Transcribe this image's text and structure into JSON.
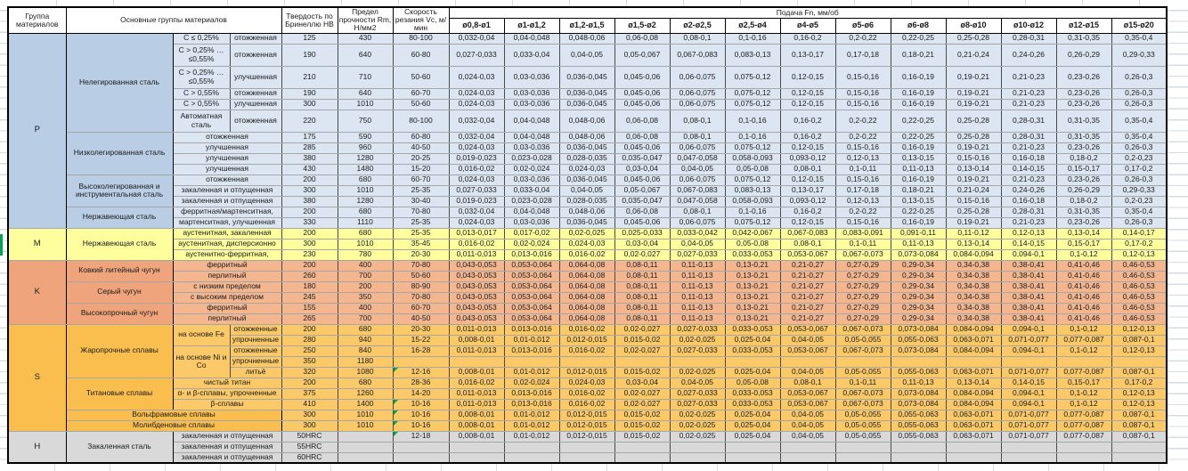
{
  "header": {
    "group": "Группа материалов",
    "main_groups": "Основные группы материалов",
    "hardness": "Твердость по Бринеллю HB",
    "strength": "Предел прочности Rm, Н/мм2",
    "speed": "Скорость резания Vc, м/мин",
    "feed": "Подача Fn, мм/об",
    "diameters": [
      "ø0,8-ø1",
      "ø1-ø1,2",
      "ø1,2-ø1,5",
      "ø1,5-ø2",
      "ø2-ø2,5",
      "ø2,5-ø4",
      "ø4-ø5",
      "ø5-ø6",
      "ø6-ø8",
      "ø8-ø10",
      "ø10-ø12",
      "ø12-ø15",
      "ø15-ø20"
    ]
  },
  "colors": {
    "p_label": "#B9CDE5",
    "p_cell": "#DBE6F2",
    "m_label": "#FEFF9C",
    "m_cell": "#FEFF9C",
    "k_label": "#F0A47C",
    "k_cell": "#F4B68F",
    "s_label": "#F9BE4E",
    "s_cell": "#FBC967",
    "h_label": "#D9D9D9",
    "h_cell": "#D9D9D9",
    "comment_marker": "#00A550",
    "gridline": "#D6DCE4"
  },
  "feed_profiles": {
    "A": [
      "0,032-0,04",
      "0,04-0,048",
      "0,048-0,06",
      "0,06-0,08",
      "0,08-0,1",
      "0,1-0,16",
      "0,16-0,2",
      "0,2-0,22",
      "0,22-0,25",
      "0,25-0,28",
      "0,28-0,31",
      "0,31-0,35",
      "0,35-0,4"
    ],
    "B": [
      "0,027-0,033",
      "0,033-0,04",
      "0,04-0,05",
      "0,05-0,067",
      "0,067-0,083",
      "0,083-0,13",
      "0,13-0,17",
      "0,17-0,18",
      "0,18-0,21",
      "0,21-0,24",
      "0,24-0,26",
      "0,26-0,29",
      "0,29-0,33"
    ],
    "C": [
      "0,024-0,03",
      "0,03-0,036",
      "0,036-0,045",
      "0,045-0,06",
      "0,06-0,075",
      "0,075-0,12",
      "0,12-0,15",
      "0,15-0,16",
      "0,16-0,19",
      "0,19-0,21",
      "0,21-0,23",
      "0,23-0,26",
      "0,26-0,3"
    ],
    "D": [
      "0,019-0,023",
      "0,023-0,028",
      "0,028-0,035",
      "0,035-0,047",
      "0,047-0,058",
      "0,058-0,093",
      "0,093-0,12",
      "0,12-0,13",
      "0,13-0,15",
      "0,15-0,16",
      "0,16-0,18",
      "0,18-0,2",
      "0,2-0,23"
    ],
    "E": [
      "0,016-0,02",
      "0,02-0,024",
      "0,024-0,03",
      "0,03-0,04",
      "0,04-0,05",
      "0,05-0,08",
      "0,08-0,1",
      "0,1-0,11",
      "0,11-0,13",
      "0,13-0,14",
      "0,14-0,15",
      "0,15-0,17",
      "0,17-0,2"
    ],
    "M": [
      "0,013-0,017",
      "0,017-0,02",
      "0,02-0,025",
      "0,025-0,033",
      "0,033-0,042",
      "0,042-0,067",
      "0,067-0,083",
      "0,083-0,091",
      "0,091-0,11",
      "0,11-0,12",
      "0,12-0,13",
      "0,13-0,14",
      "0,14-0,17"
    ],
    "F": [
      "0,011-0,013",
      "0,013-0,016",
      "0,016-0,02",
      "0,02-0,027",
      "0,027-0,033",
      "0,033-0,053",
      "0,053-0,067",
      "0,067-0,073",
      "0,073-0,084",
      "0,084-0,094",
      "0,094-0,1",
      "0,1-0,12",
      "0,12-0,13"
    ],
    "G": [
      "0,008-0,01",
      "0,01-0,012",
      "0,012-0,015",
      "0,015-0,02",
      "0,02-0,025",
      "0,025-0,04",
      "0,04-0,05",
      "0,05-0,055",
      "0,055-0,063",
      "0,063-0,071",
      "0,071-0,077",
      "0,077-0,087",
      "0,087-0,1"
    ],
    "K": [
      "0,043-0,053",
      "0,053-0,064",
      "0,064-0,08",
      "0,08-0,11",
      "0,11-0,13",
      "0,13-0,21",
      "0,21-0,27",
      "0,27-0,29",
      "0,29-0,34",
      "0,34-0,38",
      "0,38-0,41",
      "0,41-0,46",
      "0,46-0,53"
    ]
  },
  "sections": [
    {
      "label": "P",
      "style": "p",
      "rows": [
        {
          "group": {
            "text": "Нелегированная сталь",
            "rowspan": 6
          },
          "sub": [
            {
              "text": "C ≤ 0,25%"
            },
            {
              "text": "отожженная"
            }
          ],
          "hb": "125",
          "rm": "430",
          "vc": "80-100",
          "feeds": "A"
        },
        {
          "sub": [
            {
              "text": "C > 0,25% … ≤0,55%"
            },
            {
              "text": "отожженная"
            }
          ],
          "hb": "190",
          "rm": "640",
          "vc": "60-80",
          "feeds": "B",
          "tall": true
        },
        {
          "sub": [
            {
              "text": "C > 0,25% … ≤0,55%"
            },
            {
              "text": "улучшенная"
            }
          ],
          "hb": "210",
          "rm": "710",
          "vc": "50-60",
          "feeds": "C",
          "tall": true
        },
        {
          "sub": [
            {
              "text": "C > 0,55%"
            },
            {
              "text": "отожженная"
            }
          ],
          "hb": "190",
          "rm": "640",
          "vc": "60-70",
          "feeds": "C"
        },
        {
          "sub": [
            {
              "text": "C > 0,55%"
            },
            {
              "text": "улучшенная"
            }
          ],
          "hb": "300",
          "rm": "1010",
          "vc": "50-60",
          "feeds": "C"
        },
        {
          "sub": [
            {
              "text": "Автоматная сталь"
            },
            {
              "text": "отожженная"
            }
          ],
          "hb": "220",
          "rm": "750",
          "vc": "80-100",
          "feeds": "A",
          "tall": true
        },
        {
          "group": {
            "text": "Низколегированная сталь",
            "rowspan": 4
          },
          "sub": [
            {
              "text": "отожженная",
              "colspan": 2
            }
          ],
          "hb": "175",
          "rm": "590",
          "vc": "60-80",
          "feeds": "A"
        },
        {
          "sub": [
            {
              "text": "улучшенная",
              "colspan": 2
            }
          ],
          "hb": "285",
          "rm": "960",
          "vc": "40-50",
          "feeds": "C"
        },
        {
          "sub": [
            {
              "text": "улучшенная",
              "colspan": 2
            }
          ],
          "hb": "380",
          "rm": "1280",
          "vc": "20-25",
          "feeds": "D"
        },
        {
          "sub": [
            {
              "text": "улучшенная",
              "colspan": 2
            }
          ],
          "hb": "430",
          "rm": "1480",
          "vc": "15-20",
          "feeds": "E"
        },
        {
          "group": {
            "text": "Высоколегированная и инструментальная сталь",
            "rowspan": 3
          },
          "sub": [
            {
              "text": "отожженная",
              "colspan": 2
            }
          ],
          "hb": "200",
          "rm": "680",
          "vc": "60-70",
          "feeds": "C"
        },
        {
          "sub": [
            {
              "text": "закаленная и отпущенная",
              "colspan": 2
            }
          ],
          "hb": "300",
          "rm": "1010",
          "vc": "25-35",
          "feeds": "B"
        },
        {
          "sub": [
            {
              "text": "закаленная и отпущенная",
              "colspan": 2
            }
          ],
          "hb": "380",
          "rm": "1280",
          "vc": "30-40",
          "feeds": "D"
        },
        {
          "group": {
            "text": "Нержавеющая сталь",
            "rowspan": 2
          },
          "sub": [
            {
              "text": "ферритная/мартенситная,",
              "colspan": 2
            }
          ],
          "hb": "200",
          "rm": "680",
          "vc": "70-80",
          "feeds": "A"
        },
        {
          "sub": [
            {
              "text": "мартенситная, улучшенная",
              "colspan": 2
            }
          ],
          "hb": "330",
          "rm": "1110",
          "vc": "25-35",
          "feeds": "C"
        }
      ]
    },
    {
      "label": "M",
      "style": "m",
      "rows": [
        {
          "group": {
            "text": "Нержавеющая сталь",
            "rowspan": 3
          },
          "sub": [
            {
              "text": "аустенитная, закаленная",
              "colspan": 2
            }
          ],
          "hb": "200",
          "rm": "680",
          "vc": "25-35",
          "feeds": "M"
        },
        {
          "sub": [
            {
              "text": "аустенитная, дисперсионно",
              "colspan": 2
            }
          ],
          "hb": "300",
          "rm": "1010",
          "vc": "35-45",
          "feeds": "E"
        },
        {
          "sub": [
            {
              "text": "аустенитно-ферритная,",
              "colspan": 2
            }
          ],
          "hb": "230",
          "rm": "780",
          "vc": "20-30",
          "feeds": "F"
        }
      ]
    },
    {
      "label": "K",
      "style": "k",
      "rows": [
        {
          "group": {
            "text": "Ковкий литейный чугун",
            "rowspan": 2
          },
          "sub": [
            {
              "text": "ферритный",
              "colspan": 2
            }
          ],
          "hb": "200",
          "rm": "400",
          "vc": "70-80",
          "feeds": "K"
        },
        {
          "sub": [
            {
              "text": "перлитный",
              "colspan": 2
            }
          ],
          "hb": "260",
          "rm": "700",
          "vc": "50-60",
          "feeds": "K"
        },
        {
          "group": {
            "text": "Серый чугун",
            "rowspan": 2
          },
          "sub": [
            {
              "text": "с низким пределом",
              "colspan": 2
            }
          ],
          "hb": "180",
          "rm": "200",
          "vc": "80-90",
          "feeds": "K"
        },
        {
          "sub": [
            {
              "text": "с высоким пределом",
              "colspan": 2
            }
          ],
          "hb": "245",
          "rm": "350",
          "vc": "70-80",
          "feeds": "K"
        },
        {
          "group": {
            "text": "Высокопрочный чугун",
            "rowspan": 2
          },
          "sub": [
            {
              "text": "ферритный",
              "colspan": 2
            }
          ],
          "hb": "155",
          "rm": "400",
          "vc": "60-70",
          "feeds": "K"
        },
        {
          "sub": [
            {
              "text": "перлитный",
              "colspan": 2
            }
          ],
          "hb": "265",
          "rm": "700",
          "vc": "40-50",
          "feeds": "K"
        }
      ]
    },
    {
      "label": "S",
      "style": "s",
      "rows": [
        {
          "group": {
            "text": "Жаропрочные сплавы",
            "rowspan": 5
          },
          "sub": [
            {
              "text": "на основе Fe",
              "rowspan": 2
            },
            {
              "text": "отожженные"
            }
          ],
          "hb": "200",
          "rm": "680",
          "vc": "20-30",
          "feeds": "F"
        },
        {
          "sub": [
            {
              "text": "упрочненные"
            }
          ],
          "hb": "280",
          "rm": "940",
          "vc": "15-22",
          "feeds": "G"
        },
        {
          "sub": [
            {
              "text": "на основе Ni и Co",
              "rowspan": 3
            },
            {
              "text": "отожженные"
            }
          ],
          "hb": "250",
          "rm": "840",
          "vc": "16-28",
          "feeds": "F"
        },
        {
          "sub": [
            {
              "text": "упрочненные"
            }
          ],
          "hb": "350",
          "rm": "1180",
          "vc": "",
          "feeds": null
        },
        {
          "sub": [
            {
              "text": "литьё"
            }
          ],
          "hb": "320",
          "rm": "1080",
          "vc": "12-16",
          "vc_flag": true,
          "feeds": "G"
        },
        {
          "group": {
            "text": "Титановые сплавы",
            "rowspan": 3
          },
          "sub": [
            {
              "text": "чистый титан",
              "colspan": 2
            }
          ],
          "hb": "200",
          "rm": "680",
          "vc": "28-36",
          "feeds": "E"
        },
        {
          "sub": [
            {
              "text": "α- и β-сплавы, упрочненные",
              "colspan": 2
            }
          ],
          "hb": "375",
          "rm": "1260",
          "vc": "14-20",
          "feeds": "F"
        },
        {
          "sub": [
            {
              "text": "β-сплавы",
              "colspan": 2
            }
          ],
          "hb": "410",
          "rm": "1400",
          "vc": "10-16",
          "vc_flag": true,
          "feeds": "F"
        },
        {
          "group": {
            "text": "Вольфрамовые сплавы",
            "colspan": 3
          },
          "hb": "300",
          "rm": "1010",
          "vc": "10-16",
          "vc_flag": true,
          "feeds": "G"
        },
        {
          "group": {
            "text": "Молибденовые сплавы",
            "colspan": 3
          },
          "hb": "300",
          "rm": "1010",
          "vc": "10-16",
          "vc_flag": true,
          "feeds": "G"
        }
      ]
    },
    {
      "label": "H",
      "style": "h",
      "rows": [
        {
          "group": {
            "text": "Закаленная сталь",
            "rowspan": 3
          },
          "sub": [
            {
              "text": "закаленная и отпущенная",
              "colspan": 2
            }
          ],
          "hb": "50HRC",
          "rm": "",
          "vc": "12-18",
          "vc_flag": true,
          "feeds": "G"
        },
        {
          "sub": [
            {
              "text": "закаленная и отпущенная",
              "colspan": 2
            }
          ],
          "hb": "55HRC",
          "rm": "",
          "vc": "",
          "feeds": null
        },
        {
          "sub": [
            {
              "text": "закаленная и отпущенная",
              "colspan": 2
            }
          ],
          "hb": "60HRC",
          "rm": "",
          "vc": "",
          "feeds": null
        }
      ]
    }
  ]
}
